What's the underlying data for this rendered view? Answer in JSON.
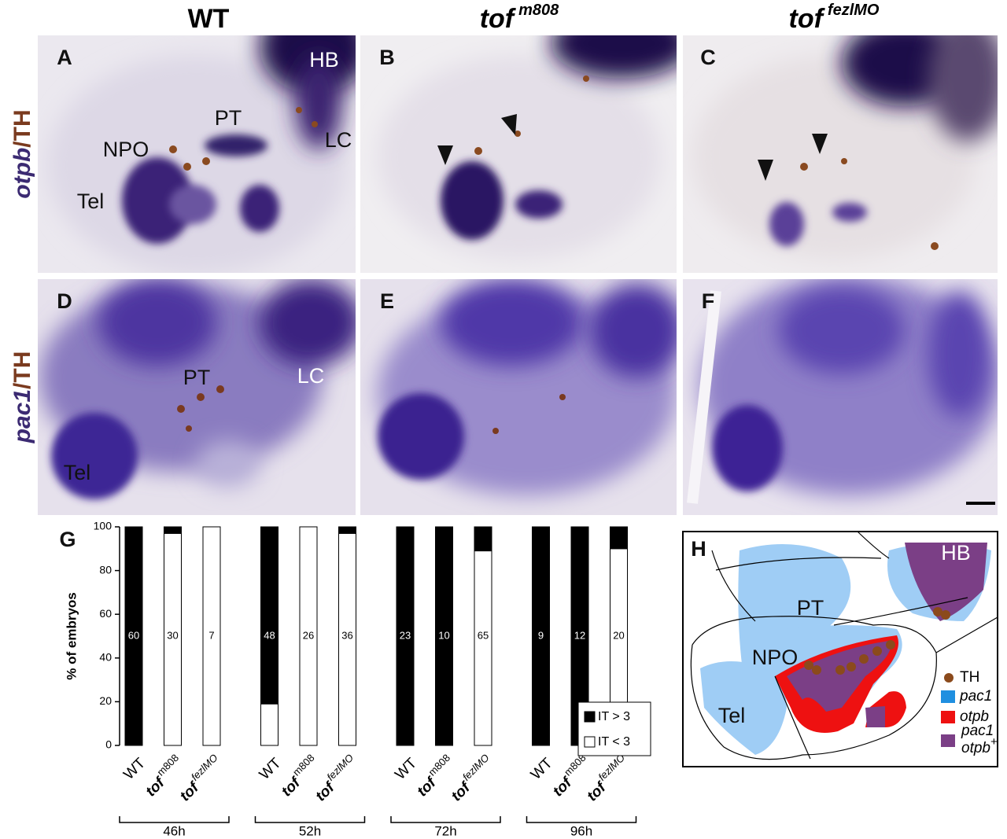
{
  "column_headers": [
    [
      "WT"
    ],
    [
      "tof",
      "m808"
    ],
    [
      "tof",
      "fezlMO"
    ]
  ],
  "row_labels": [
    [
      "otpb",
      "/TH"
    ],
    [
      "pac1",
      "/TH"
    ]
  ],
  "panels": [
    {
      "letter": "A",
      "labels": [
        "HB",
        "PT",
        "NPO",
        "LC",
        "Tel"
      ]
    },
    {
      "letter": "B"
    },
    {
      "letter": "C"
    },
    {
      "letter": "D",
      "labels": [
        "PT",
        "LC",
        "Tel"
      ]
    },
    {
      "letter": "E"
    },
    {
      "letter": "F"
    }
  ],
  "chart_data": {
    "type": "stacked-bar",
    "panel_letter": "G",
    "y_label": "% of embryos",
    "categories": [
      [
        "WT"
      ],
      [
        "tof",
        "m808"
      ],
      [
        "tof",
        "fezlMO"
      ],
      [
        "WT"
      ],
      [
        "tof",
        "m808"
      ],
      [
        "tof",
        "fezlMO"
      ],
      [
        "WT"
      ],
      [
        "tof",
        "m808"
      ],
      [
        "tof",
        "fezlMO"
      ],
      [
        "WT"
      ],
      [
        "tof",
        "m808"
      ],
      [
        "tof",
        "fezlMO"
      ]
    ],
    "groups": [
      "46h",
      "52h",
      "72h",
      "96h"
    ],
    "counts": [
      60,
      30,
      7,
      48,
      26,
      36,
      23,
      10,
      65,
      9,
      12,
      20
    ],
    "series": [
      {
        "name": "IT < 3",
        "color": "#ffffff",
        "values": [
          0,
          97,
          100,
          19,
          100,
          97,
          0,
          0,
          89,
          0,
          0,
          90
        ]
      },
      {
        "name": "IT > 3",
        "color": "#000000",
        "values": [
          100,
          3,
          0,
          81,
          0,
          3,
          100,
          100,
          11,
          100,
          100,
          10
        ]
      }
    ],
    "ylim": [
      0,
      100
    ],
    "yticks": [
      0,
      20,
      40,
      60,
      80,
      100
    ]
  },
  "diagram": {
    "letter": "H",
    "labels": [
      "HB",
      "PT",
      "NPO",
      "Tel"
    ],
    "legend": [
      {
        "color": "#8b4a1c",
        "text": [
          "TH"
        ]
      },
      {
        "color": "#1f8fe0",
        "text": [
          "pac1"
        ]
      },
      {
        "color": "#ee1111",
        "text": [
          "otpb"
        ]
      },
      {
        "color": "#7b3f86",
        "text": [
          "pac1",
          "otpb",
          "+"
        ]
      }
    ]
  }
}
